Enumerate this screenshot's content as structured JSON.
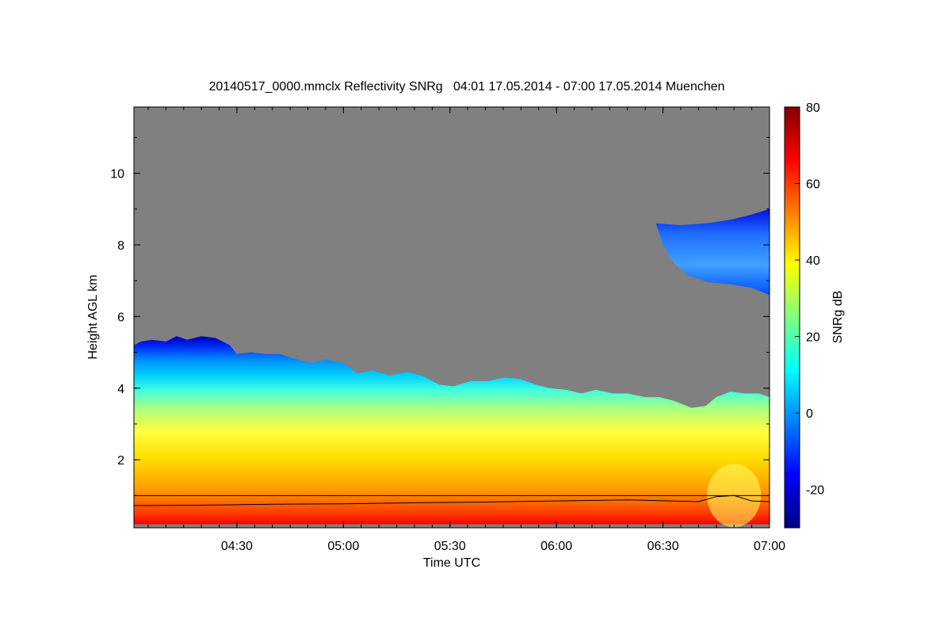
{
  "chart_data": {
    "type": "heatmap",
    "title": "20140517_0000.mmclx Reflectivity SNRg   04:01 17.05.2014 - 07:00 17.05.2014 Muenchen",
    "xlabel": "Time UTC",
    "ylabel": "Height AGL km",
    "colorbar_label": "SNRg dB",
    "x_range_minutes_utc": [
      241,
      420
    ],
    "y_range_km": [
      0.1,
      11.85
    ],
    "x_ticks": [
      {
        "label": "04:30",
        "minutes": 270
      },
      {
        "label": "05:00",
        "minutes": 300
      },
      {
        "label": "05:30",
        "minutes": 330
      },
      {
        "label": "06:00",
        "minutes": 360
      },
      {
        "label": "06:30",
        "minutes": 390
      },
      {
        "label": "07:00",
        "minutes": 420
      }
    ],
    "y_ticks": [
      {
        "label": "2",
        "value": 2
      },
      {
        "label": "4",
        "value": 4
      },
      {
        "label": "6",
        "value": 6
      },
      {
        "label": "8",
        "value": 8
      },
      {
        "label": "10",
        "value": 10
      }
    ],
    "colorbar_range_db": [
      -30,
      80
    ],
    "colorbar_ticks": [
      {
        "label": "-20",
        "value": -20
      },
      {
        "label": "0",
        "value": 0
      },
      {
        "label": "20",
        "value": 20
      },
      {
        "label": "40",
        "value": 40
      },
      {
        "label": "60",
        "value": 60
      },
      {
        "label": "80",
        "value": 80
      }
    ],
    "no_signal_color": "#808080",
    "colormap": [
      "#00007f",
      "#0000ff",
      "#007fff",
      "#00ffff",
      "#7fff7f",
      "#ffff00",
      "#ff7f00",
      "#ff0000",
      "#7f0000"
    ],
    "lower_cloud_top_km": [
      [
        241,
        5.2
      ],
      [
        243,
        5.3
      ],
      [
        246,
        5.35
      ],
      [
        250,
        5.3
      ],
      [
        253,
        5.45
      ],
      [
        256,
        5.35
      ],
      [
        260,
        5.45
      ],
      [
        264,
        5.4
      ],
      [
        268,
        5.2
      ],
      [
        270,
        4.95
      ],
      [
        274,
        5.0
      ],
      [
        278,
        4.95
      ],
      [
        282,
        4.95
      ],
      [
        287,
        4.8
      ],
      [
        291,
        4.7
      ],
      [
        295,
        4.8
      ],
      [
        300,
        4.7
      ],
      [
        304,
        4.4
      ],
      [
        308,
        4.5
      ],
      [
        313,
        4.35
      ],
      [
        318,
        4.45
      ],
      [
        322,
        4.35
      ],
      [
        327,
        4.1
      ],
      [
        331,
        4.05
      ],
      [
        336,
        4.2
      ],
      [
        341,
        4.2
      ],
      [
        345,
        4.3
      ],
      [
        350,
        4.25
      ],
      [
        354,
        4.1
      ],
      [
        358,
        4.0
      ],
      [
        363,
        3.95
      ],
      [
        367,
        3.85
      ],
      [
        371,
        3.95
      ],
      [
        376,
        3.85
      ],
      [
        380,
        3.85
      ],
      [
        385,
        3.75
      ],
      [
        389,
        3.75
      ],
      [
        393,
        3.65
      ],
      [
        398,
        3.45
      ],
      [
        402,
        3.5
      ],
      [
        405,
        3.75
      ],
      [
        409,
        3.9
      ],
      [
        413,
        3.85
      ],
      [
        417,
        3.85
      ],
      [
        420,
        3.75
      ]
    ],
    "lower_cloud_bottom_km": 0.2,
    "upper_cloud_layer": {
      "minutes_range": [
        388,
        420
      ],
      "top_km": [
        [
          388,
          8.6
        ],
        [
          395,
          8.55
        ],
        [
          402,
          8.6
        ],
        [
          409,
          8.7
        ],
        [
          415,
          8.85
        ],
        [
          420,
          9.0
        ]
      ],
      "base_km": [
        [
          420,
          6.6
        ],
        [
          415,
          6.8
        ],
        [
          409,
          6.9
        ],
        [
          403,
          6.95
        ],
        [
          397,
          7.15
        ],
        [
          393,
          7.5
        ],
        [
          390,
          8.0
        ],
        [
          388,
          8.6
        ]
      ]
    },
    "near_surface_lines_km": {
      "upper": 1.0,
      "lower": [
        [
          241,
          0.72
        ],
        [
          260,
          0.73
        ],
        [
          280,
          0.76
        ],
        [
          300,
          0.77
        ],
        [
          320,
          0.8
        ],
        [
          340,
          0.82
        ],
        [
          360,
          0.85
        ],
        [
          380,
          0.88
        ],
        [
          400,
          0.83
        ],
        [
          405,
          0.97
        ],
        [
          410,
          1.0
        ],
        [
          415,
          0.85
        ],
        [
          420,
          0.83
        ]
      ]
    }
  }
}
